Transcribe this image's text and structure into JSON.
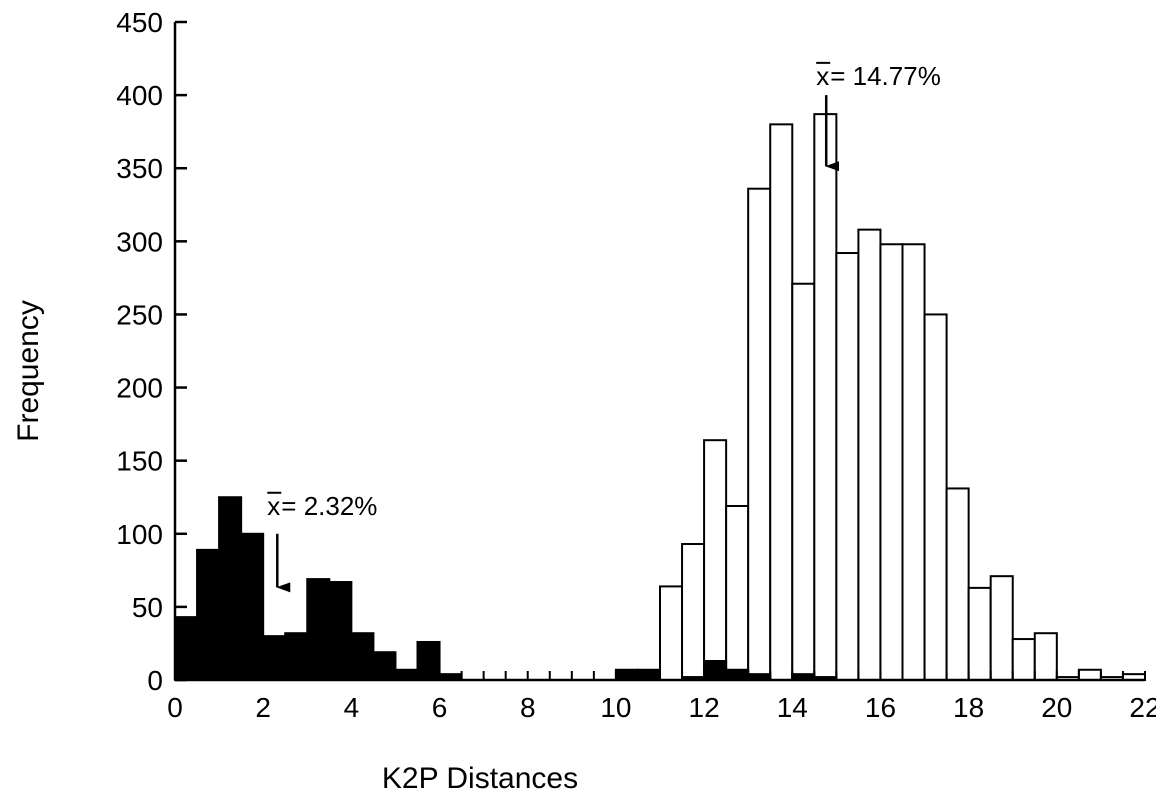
{
  "chart_data": {
    "type": "bar",
    "title": "",
    "xlabel": "K2P Distances",
    "ylabel": "Frequency",
    "xlim": [
      0,
      22
    ],
    "ylim": [
      0,
      450
    ],
    "x_ticks": [
      "0",
      "2",
      "4",
      "6",
      "8",
      "10",
      "12",
      "14",
      "16",
      "18",
      "20",
      "22"
    ],
    "y_ticks": [
      "0",
      "50",
      "100",
      "150",
      "200",
      "250",
      "300",
      "350",
      "400",
      "450"
    ],
    "bin_width": 0.5,
    "bin_starts": [
      0,
      0.5,
      1,
      1.5,
      2,
      2.5,
      3,
      3.5,
      4,
      4.5,
      5,
      5.5,
      6,
      6.5,
      7,
      7.5,
      8,
      8.5,
      9,
      9.5,
      10,
      10.5,
      11,
      11.5,
      12,
      12.5,
      13,
      13.5,
      14,
      14.5,
      15,
      15.5,
      16,
      16.5,
      17,
      17.5,
      18,
      18.5,
      19,
      19.5,
      20,
      20.5,
      21,
      21.5
    ],
    "series": [
      {
        "fill": "#ffffff",
        "values": [
          0,
          0,
          0,
          0,
          12,
          0,
          0,
          0,
          0,
          0,
          0,
          0,
          0,
          0,
          0,
          0,
          0,
          0,
          0,
          0,
          0,
          0,
          64,
          93,
          164,
          119,
          336,
          380,
          271,
          387,
          292,
          308,
          298,
          298,
          250,
          131,
          63,
          71,
          28,
          32,
          2,
          7,
          2,
          4
        ]
      },
      {
        "fill": "#000000",
        "values": [
          43,
          89,
          125,
          100,
          30,
          32,
          69,
          67,
          32,
          19,
          7,
          26,
          4,
          0,
          0,
          0,
          0,
          0,
          0,
          0,
          7,
          7,
          0,
          2,
          13,
          7,
          4,
          0,
          4,
          2,
          0,
          0,
          0,
          0,
          0,
          0,
          0,
          0,
          0,
          0,
          0,
          0,
          0,
          0
        ]
      }
    ],
    "annotations": [
      {
        "symbol": "x",
        "text": " = 2.32%",
        "x": 2.32,
        "arrow_from": 100,
        "arrow_to": 62,
        "text_y": 113
      },
      {
        "symbol": "x",
        "text": " = 14.77%",
        "x": 14.77,
        "arrow_from": 400,
        "arrow_to": 350,
        "text_y": 407
      }
    ],
    "grid": false,
    "legend": "none"
  }
}
